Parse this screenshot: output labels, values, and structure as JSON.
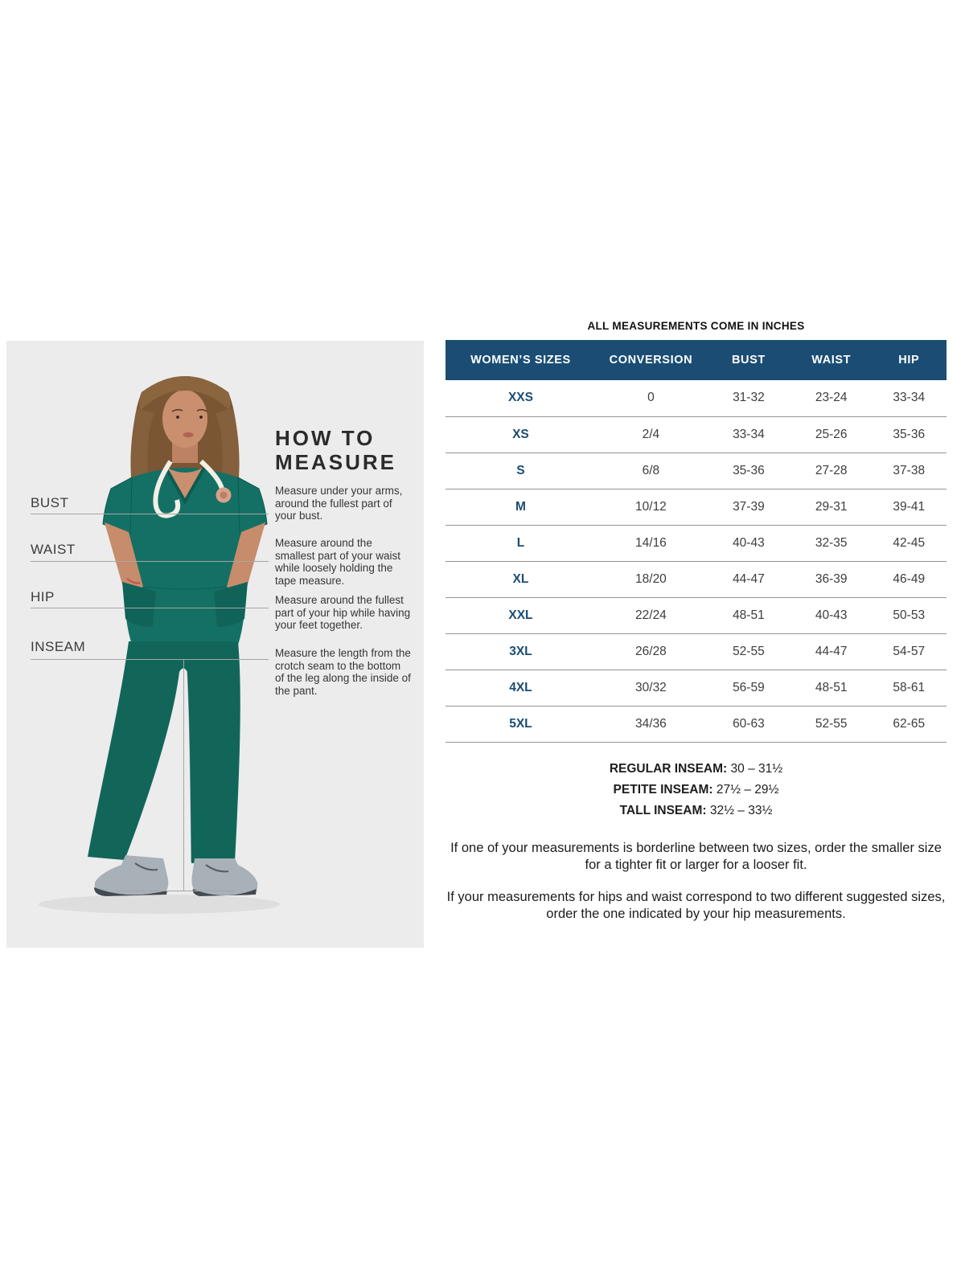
{
  "colors": {
    "header_navy": "#1b4d74",
    "panel_gray": "#ececec",
    "scrub_teal": "#147065",
    "guide_line_gray": "#a5a5a5"
  },
  "measure_panel": {
    "heading": "HOW TO\nMEASURE",
    "items": [
      {
        "label": "BUST",
        "description": "Measure under your arms, around the fullest part of your bust."
      },
      {
        "label": "WAIST",
        "description": "Measure around the smallest part of your waist while loosely holding the tape measure."
      },
      {
        "label": "HIP",
        "description": "Measure around the fullest part of your hip while having your feet together."
      },
      {
        "label": "INSEAM",
        "description": "Measure the length from the crotch seam to the bottom of the leg along the inside of the pant."
      }
    ]
  },
  "size_chart": {
    "title": "ALL MEASUREMENTS COME IN INCHES",
    "columns": [
      "WOMEN’S SIZES",
      "CONVERSION",
      "BUST",
      "WAIST",
      "HIP"
    ],
    "rows": [
      [
        "XXS",
        "0",
        "31-32",
        "23-24",
        "33-34"
      ],
      [
        "XS",
        "2/4",
        "33-34",
        "25-26",
        "35-36"
      ],
      [
        "S",
        "6/8",
        "35-36",
        "27-28",
        "37-38"
      ],
      [
        "M",
        "10/12",
        "37-39",
        "29-31",
        "39-41"
      ],
      [
        "L",
        "14/16",
        "40-43",
        "32-35",
        "42-45"
      ],
      [
        "XL",
        "18/20",
        "44-47",
        "36-39",
        "46-49"
      ],
      [
        "XXL",
        "22/24",
        "48-51",
        "40-43",
        "50-53"
      ],
      [
        "3XL",
        "26/28",
        "52-55",
        "44-47",
        "54-57"
      ],
      [
        "4XL",
        "30/32",
        "56-59",
        "48-51",
        "58-61"
      ],
      [
        "5XL",
        "34/36",
        "60-63",
        "52-55",
        "62-65"
      ]
    ]
  },
  "inseam_notes": [
    {
      "label": "REGULAR INSEAM:",
      "value": "30 – 31½"
    },
    {
      "label": "PETITE INSEAM:",
      "value": "27½ – 29½"
    },
    {
      "label": "TALL INSEAM:",
      "value": "32½ – 33½"
    }
  ],
  "footnotes": [
    "If one of your measurements is borderline between two sizes, order the smaller size for a tighter fit or larger for a looser fit.",
    "If your measurements for hips and waist correspond to two different suggested sizes, order the one indicated by your hip measurements."
  ]
}
